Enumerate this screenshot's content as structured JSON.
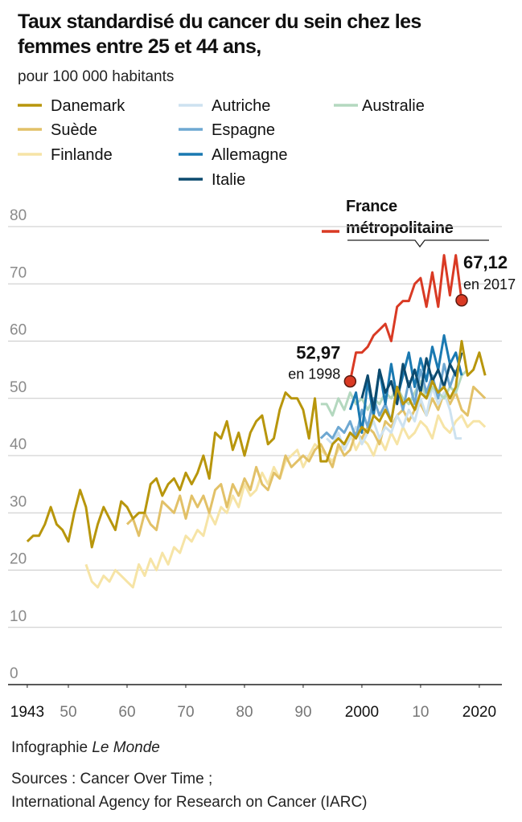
{
  "chart_data": {
    "type": "line",
    "title": "Taux standardisé du cancer du sein chez les femmes entre 25 et 44 ans,",
    "subtitle": "pour 100 000 habitants",
    "credit": "Infographie",
    "credit_outlet": "Le Monde",
    "sources": [
      "Sources : Cancer Over Time ;",
      "International Agency for Research on Cancer (IARC)"
    ],
    "annotations": [
      "en 1998",
      "en 2017"
    ],
    "xlim": [
      1940,
      2023.3
    ],
    "xticks": [
      1943,
      {
        "value": 1950,
        "label": "50"
      },
      {
        "value": 1960,
        "label": "60"
      },
      {
        "value": 1970,
        "label": "70"
      },
      {
        "value": 1980,
        "label": "80"
      },
      {
        "value": 1990,
        "label": "90"
      },
      2000,
      {
        "value": 2010,
        "label": "10"
      },
      2020
    ],
    "ylim": [
      0,
      80
    ],
    "yticks": [
      0,
      10,
      20,
      30,
      40,
      50,
      60,
      70,
      80
    ],
    "grid": true,
    "series": [
      {
        "name": "Danemark",
        "color": "#b8960c",
        "x": [
          1943,
          1944,
          1945,
          1946,
          1947,
          1948,
          1949,
          1950,
          1951,
          1952,
          1953,
          1954,
          1955,
          1956,
          1957,
          1958,
          1959,
          1960,
          1961,
          1962,
          1963,
          1964,
          1965,
          1966,
          1967,
          1968,
          1969,
          1970,
          1971,
          1972,
          1973,
          1974,
          1975,
          1976,
          1977,
          1978,
          1979,
          1980,
          1981,
          1982,
          1983,
          1984,
          1985,
          1986,
          1987,
          1988,
          1989,
          1990,
          1991,
          1992,
          1993,
          1994,
          1995,
          1996,
          1997,
          1998,
          1999,
          2000,
          2001,
          2002,
          2003,
          2004,
          2005,
          2006,
          2007,
          2008,
          2009,
          2010,
          2011,
          2012,
          2013,
          2014,
          2015,
          2016,
          2017,
          2018,
          2019,
          2020,
          2021
        ],
        "values": [
          25,
          26,
          26,
          28,
          31,
          28,
          27,
          25,
          30,
          34,
          31,
          24,
          28,
          31,
          29,
          27,
          32,
          31,
          29,
          30,
          30,
          35,
          36,
          33,
          35,
          36,
          34,
          37,
          35,
          37,
          40,
          36,
          44,
          43,
          46,
          41,
          44,
          40,
          44,
          46,
          47,
          42,
          43,
          48,
          51,
          50,
          50,
          48,
          43,
          50,
          39,
          39,
          42,
          43,
          42,
          44,
          43,
          45,
          44,
          47,
          46,
          48,
          46,
          52,
          49,
          50,
          48,
          51,
          50,
          53,
          51,
          52,
          50,
          52,
          60,
          54,
          55,
          58,
          54
        ]
      },
      {
        "name": "Suède",
        "color": "#e2c168",
        "x": [
          1960,
          1961,
          1962,
          1963,
          1964,
          1965,
          1966,
          1967,
          1968,
          1969,
          1970,
          1971,
          1972,
          1973,
          1974,
          1975,
          1976,
          1977,
          1978,
          1979,
          1980,
          1981,
          1982,
          1983,
          1984,
          1985,
          1986,
          1987,
          1988,
          1989,
          1990,
          1991,
          1992,
          1993,
          1994,
          1995,
          1996,
          1997,
          1998,
          1999,
          2000,
          2001,
          2002,
          2003,
          2004,
          2005,
          2006,
          2007,
          2008,
          2009,
          2010,
          2011,
          2012,
          2013,
          2014,
          2015,
          2016,
          2017,
          2018,
          2019,
          2020,
          2021
        ],
        "values": [
          28,
          29,
          26,
          30,
          28,
          27,
          32,
          31,
          30,
          33,
          29,
          33,
          31,
          33,
          30,
          34,
          35,
          31,
          35,
          33,
          36,
          34,
          38,
          35,
          34,
          37,
          36,
          40,
          38,
          39,
          40,
          39,
          41,
          42,
          40,
          38,
          42,
          40,
          41,
          44,
          43,
          45,
          44,
          42,
          46,
          45,
          47,
          48,
          46,
          48,
          49,
          47,
          50,
          48,
          51,
          49,
          51,
          48,
          47,
          52,
          51,
          50
        ]
      },
      {
        "name": "Finlande",
        "color": "#f6e4a6",
        "x": [
          1953,
          1954,
          1955,
          1956,
          1957,
          1958,
          1959,
          1960,
          1961,
          1962,
          1963,
          1964,
          1965,
          1966,
          1967,
          1968,
          1969,
          1970,
          1971,
          1972,
          1973,
          1974,
          1975,
          1976,
          1977,
          1978,
          1979,
          1980,
          1981,
          1982,
          1983,
          1984,
          1985,
          1986,
          1987,
          1988,
          1989,
          1990,
          1991,
          1992,
          1993,
          1994,
          1995,
          1996,
          1997,
          1998,
          1999,
          2000,
          2001,
          2002,
          2003,
          2004,
          2005,
          2006,
          2007,
          2008,
          2009,
          2010,
          2011,
          2012,
          2013,
          2014,
          2015,
          2016,
          2017,
          2018,
          2019,
          2020,
          2021
        ],
        "values": [
          21,
          18,
          17,
          19,
          18,
          20,
          19,
          18,
          17,
          21,
          19,
          22,
          20,
          23,
          21,
          24,
          23,
          26,
          25,
          27,
          26,
          30,
          28,
          31,
          30,
          33,
          31,
          35,
          33,
          34,
          37,
          35,
          38,
          36,
          39,
          40,
          41,
          38,
          40,
          42,
          41,
          40,
          39,
          41,
          42,
          44,
          41,
          43,
          42,
          40,
          43,
          41,
          44,
          42,
          45,
          43,
          44,
          46,
          45,
          43,
          47,
          45,
          44,
          46,
          47,
          45,
          46,
          46,
          45
        ]
      },
      {
        "name": "Autriche",
        "color": "#cde2f0",
        "x": [
          1994,
          1995,
          1996,
          1997,
          1998,
          1999,
          2000,
          2001,
          2002,
          2003,
          2004,
          2005,
          2006,
          2007,
          2008,
          2009,
          2010,
          2011,
          2012,
          2013,
          2014,
          2015,
          2016,
          2017
        ],
        "values": [
          43,
          42,
          44,
          41,
          43,
          45,
          42,
          44,
          46,
          43,
          45,
          44,
          47,
          45,
          48,
          46,
          50,
          47,
          52,
          49,
          51,
          48,
          43,
          43
        ]
      },
      {
        "name": "Espagne",
        "color": "#6ea8d2",
        "x": [
          1993,
          1994,
          1995,
          1996,
          1997,
          1998,
          1999,
          2000,
          2001,
          2002,
          2003,
          2004,
          2005,
          2006,
          2007,
          2008,
          2009,
          2010,
          2011,
          2012,
          2013,
          2014,
          2015,
          2016
        ],
        "values": [
          43,
          44,
          43,
          45,
          44,
          46,
          43,
          48,
          45,
          50,
          47,
          49,
          46,
          52,
          48,
          53,
          49,
          55,
          51,
          54,
          50,
          56,
          52,
          55
        ]
      },
      {
        "name": "Allemagne",
        "color": "#1a79b1",
        "x": [
          1998,
          1999,
          2000,
          2001,
          2002,
          2003,
          2004,
          2005,
          2006,
          2007,
          2008,
          2009,
          2010,
          2011,
          2012,
          2013,
          2014,
          2015,
          2016,
          2017
        ],
        "values": [
          48,
          51,
          44,
          53,
          47,
          55,
          49,
          56,
          50,
          54,
          58,
          52,
          57,
          53,
          59,
          55,
          61,
          56,
          58,
          54
        ]
      },
      {
        "name": "Italie",
        "color": "#0c4a6e",
        "x": [
          2000,
          2001,
          2002,
          2003,
          2004,
          2005,
          2006,
          2007,
          2008,
          2009,
          2010,
          2011,
          2012,
          2013,
          2014,
          2015,
          2016,
          2017
        ],
        "values": [
          50,
          54,
          48,
          55,
          51,
          53,
          49,
          56,
          52,
          55,
          51,
          57,
          53,
          55,
          52,
          56,
          54,
          58
        ]
      },
      {
        "name": "Australie",
        "color": "#b4d8bf",
        "x": [
          1993,
          1994,
          1995,
          1996,
          1997,
          1998,
          1999,
          2000,
          2001,
          2002,
          2003,
          2004,
          2005,
          2006,
          2007,
          2008,
          2009,
          2010,
          2011,
          2012,
          2013,
          2014,
          2015,
          2016,
          2017,
          2018
        ],
        "values": [
          49,
          49,
          47,
          50,
          48,
          51,
          49,
          50,
          48,
          50,
          49,
          51,
          50,
          52,
          50,
          49,
          51,
          53,
          50,
          52,
          51,
          50,
          52,
          51,
          54,
          55
        ]
      },
      {
        "name": "France métropolitaine",
        "color": "#d93a24",
        "x": [
          1998,
          1999,
          2000,
          2001,
          2002,
          2003,
          2004,
          2005,
          2006,
          2007,
          2008,
          2009,
          2010,
          2011,
          2012,
          2013,
          2014,
          2015,
          2016,
          2017
        ],
        "values": [
          52.97,
          58,
          58,
          59,
          61,
          62,
          63,
          60,
          66,
          67,
          67,
          70,
          71,
          66,
          72,
          66,
          75,
          68,
          75,
          67.12
        ],
        "value_labels": [
          "52,97",
          null,
          null,
          null,
          null,
          null,
          null,
          null,
          null,
          null,
          null,
          null,
          null,
          null,
          null,
          null,
          null,
          null,
          null,
          "67,12"
        ]
      }
    ]
  }
}
